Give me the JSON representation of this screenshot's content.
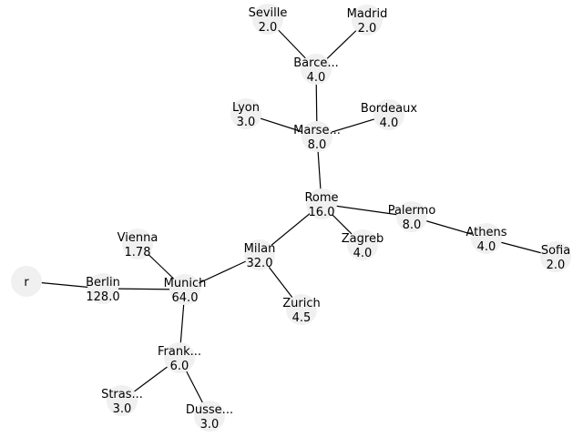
{
  "graph": {
    "colors": {
      "node_fill": "#f0f0f0",
      "edge": "#000000",
      "text": "#000000"
    },
    "nodes": [
      {
        "id": "root",
        "name": "r",
        "value": ""
      },
      {
        "id": "berlin",
        "name": "Berlin",
        "value": "128.0"
      },
      {
        "id": "munich",
        "name": "Munich",
        "value": "64.0"
      },
      {
        "id": "vienna",
        "name": "Vienna",
        "value": "1.78"
      },
      {
        "id": "milan",
        "name": "Milan",
        "value": "32.0"
      },
      {
        "id": "zurich",
        "name": "Zurich",
        "value": "4.5"
      },
      {
        "id": "frankfurt",
        "name": "Frank...",
        "value": "6.0"
      },
      {
        "id": "strasbourg",
        "name": "Stras...",
        "value": "3.0"
      },
      {
        "id": "dusseldorf",
        "name": "Dusse...",
        "value": "3.0"
      },
      {
        "id": "rome",
        "name": "Rome",
        "value": "16.0"
      },
      {
        "id": "zagreb",
        "name": "Zagreb",
        "value": "4.0"
      },
      {
        "id": "palermo",
        "name": "Palermo",
        "value": "8.0"
      },
      {
        "id": "athens",
        "name": "Athens",
        "value": "4.0"
      },
      {
        "id": "sofia",
        "name": "Sofia",
        "value": "2.0"
      },
      {
        "id": "marseille",
        "name": "Marse...",
        "value": "8.0"
      },
      {
        "id": "lyon",
        "name": "Lyon",
        "value": "3.0"
      },
      {
        "id": "bordeaux",
        "name": "Bordeaux",
        "value": "4.0"
      },
      {
        "id": "barcelona",
        "name": "Barce...",
        "value": "4.0"
      },
      {
        "id": "seville",
        "name": "Seville",
        "value": "2.0"
      },
      {
        "id": "madrid",
        "name": "Madrid",
        "value": "2.0"
      }
    ],
    "edges": [
      [
        "root",
        "berlin"
      ],
      [
        "berlin",
        "munich"
      ],
      [
        "munich",
        "vienna"
      ],
      [
        "munich",
        "milan"
      ],
      [
        "munich",
        "frankfurt"
      ],
      [
        "frankfurt",
        "strasbourg"
      ],
      [
        "frankfurt",
        "dusseldorf"
      ],
      [
        "milan",
        "zurich"
      ],
      [
        "milan",
        "rome"
      ],
      [
        "rome",
        "zagreb"
      ],
      [
        "rome",
        "palermo"
      ],
      [
        "palermo",
        "athens"
      ],
      [
        "athens",
        "sofia"
      ],
      [
        "rome",
        "marseille"
      ],
      [
        "marseille",
        "lyon"
      ],
      [
        "marseille",
        "bordeaux"
      ],
      [
        "marseille",
        "barcelona"
      ],
      [
        "barcelona",
        "seville"
      ],
      [
        "barcelona",
        "madrid"
      ]
    ]
  }
}
